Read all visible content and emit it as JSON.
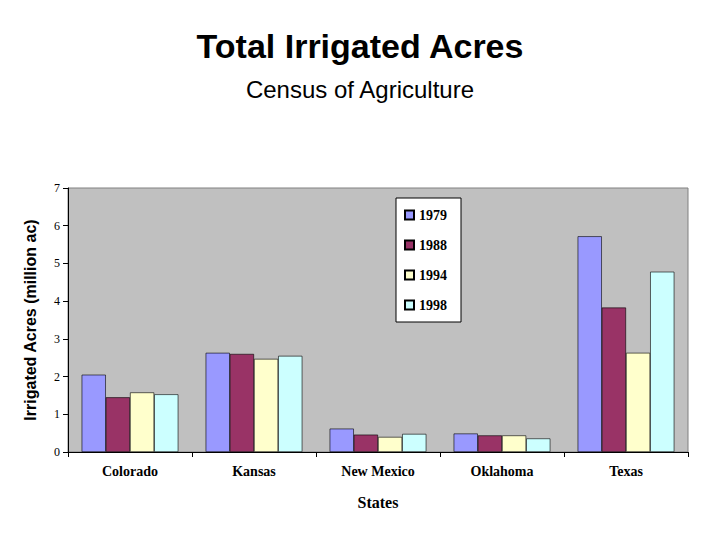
{
  "chart_data": {
    "type": "bar",
    "title": "Total Irrigated Acres",
    "subtitle": "Census of Agriculture",
    "x_label": "States",
    "y_label": "Irrigated Acres (million ac)",
    "categories": [
      "Colorado",
      "Kansas",
      "New Mexico",
      "Oklahoma",
      "Texas"
    ],
    "series": [
      {
        "name": "1979",
        "color": "#9999ff",
        "values": [
          2.05,
          2.63,
          0.62,
          0.49,
          5.72
        ]
      },
      {
        "name": "1988",
        "color": "#993366",
        "values": [
          1.45,
          2.6,
          0.46,
          0.44,
          3.83
        ]
      },
      {
        "name": "1994",
        "color": "#ffffcc",
        "values": [
          1.58,
          2.47,
          0.4,
          0.44,
          2.63
        ]
      },
      {
        "name": "1998",
        "color": "#ccffff",
        "values": [
          1.53,
          2.55,
          0.48,
          0.36,
          4.78
        ]
      }
    ],
    "ylim": [
      0,
      7
    ],
    "yticks": [
      0,
      1,
      2,
      3,
      4,
      5,
      6,
      7
    ],
    "grid": false,
    "legend": "upper center"
  }
}
